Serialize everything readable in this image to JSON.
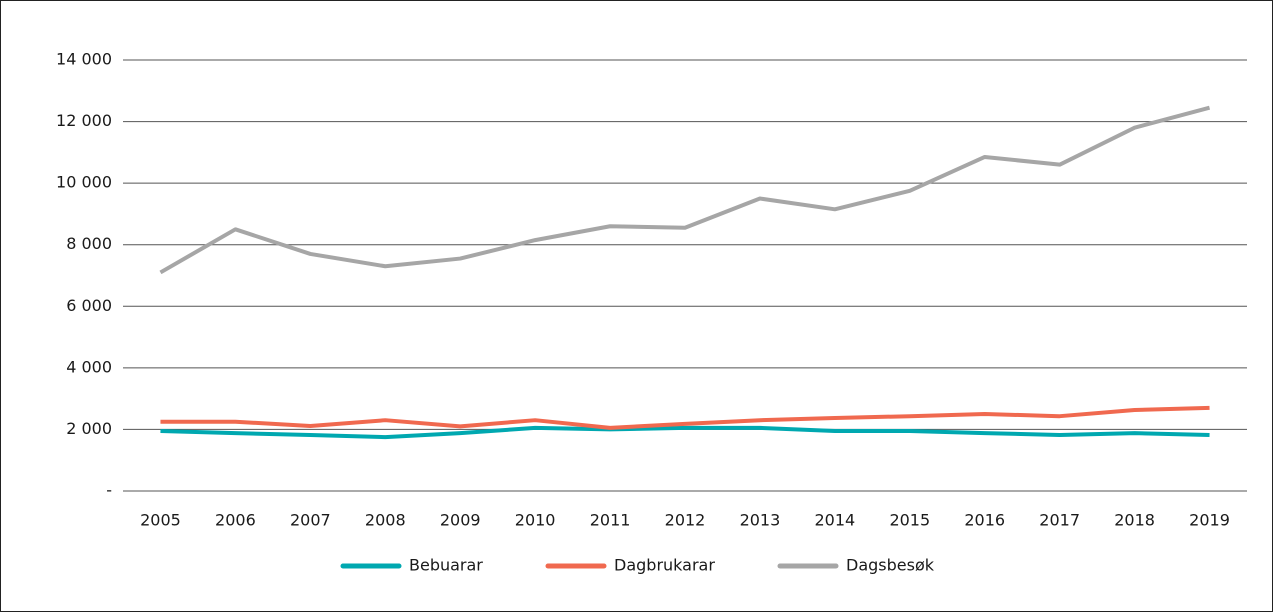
{
  "chart_data": {
    "type": "line",
    "categories": [
      "2005",
      "2006",
      "2007",
      "2008",
      "2009",
      "2010",
      "2011",
      "2012",
      "2013",
      "2014",
      "2015",
      "2016",
      "2017",
      "2018",
      "2019"
    ],
    "series": [
      {
        "name": "Bebuarar",
        "color": "#00a8b0",
        "values": [
          1950,
          1880,
          1820,
          1750,
          1880,
          2050,
          2000,
          2050,
          2050,
          1950,
          1950,
          1880,
          1820,
          1880,
          1820
        ]
      },
      {
        "name": "Dagbrukarar",
        "color": "#f0694f",
        "values": [
          2250,
          2250,
          2110,
          2300,
          2100,
          2300,
          2050,
          2180,
          2300,
          2370,
          2430,
          2500,
          2430,
          2630,
          2700
        ]
      },
      {
        "name": "Dagsbesøk",
        "color": "#a6a6a6",
        "values": [
          7100,
          8500,
          7700,
          7300,
          7550,
          8150,
          8600,
          8550,
          9500,
          9150,
          9750,
          10850,
          10600,
          11800,
          12450
        ]
      }
    ],
    "ylim": [
      0,
      14000
    ],
    "yticks": [
      {
        "value": 0,
        "label": "-"
      },
      {
        "value": 2000,
        "label": "2 000"
      },
      {
        "value": 4000,
        "label": "4 000"
      },
      {
        "value": 6000,
        "label": "6 000"
      },
      {
        "value": 8000,
        "label": "8 000"
      },
      {
        "value": 10000,
        "label": "10 000"
      },
      {
        "value": 12000,
        "label": "12 000"
      },
      {
        "value": 14000,
        "label": "14 000"
      }
    ],
    "grid": true,
    "legend": "bottom"
  }
}
